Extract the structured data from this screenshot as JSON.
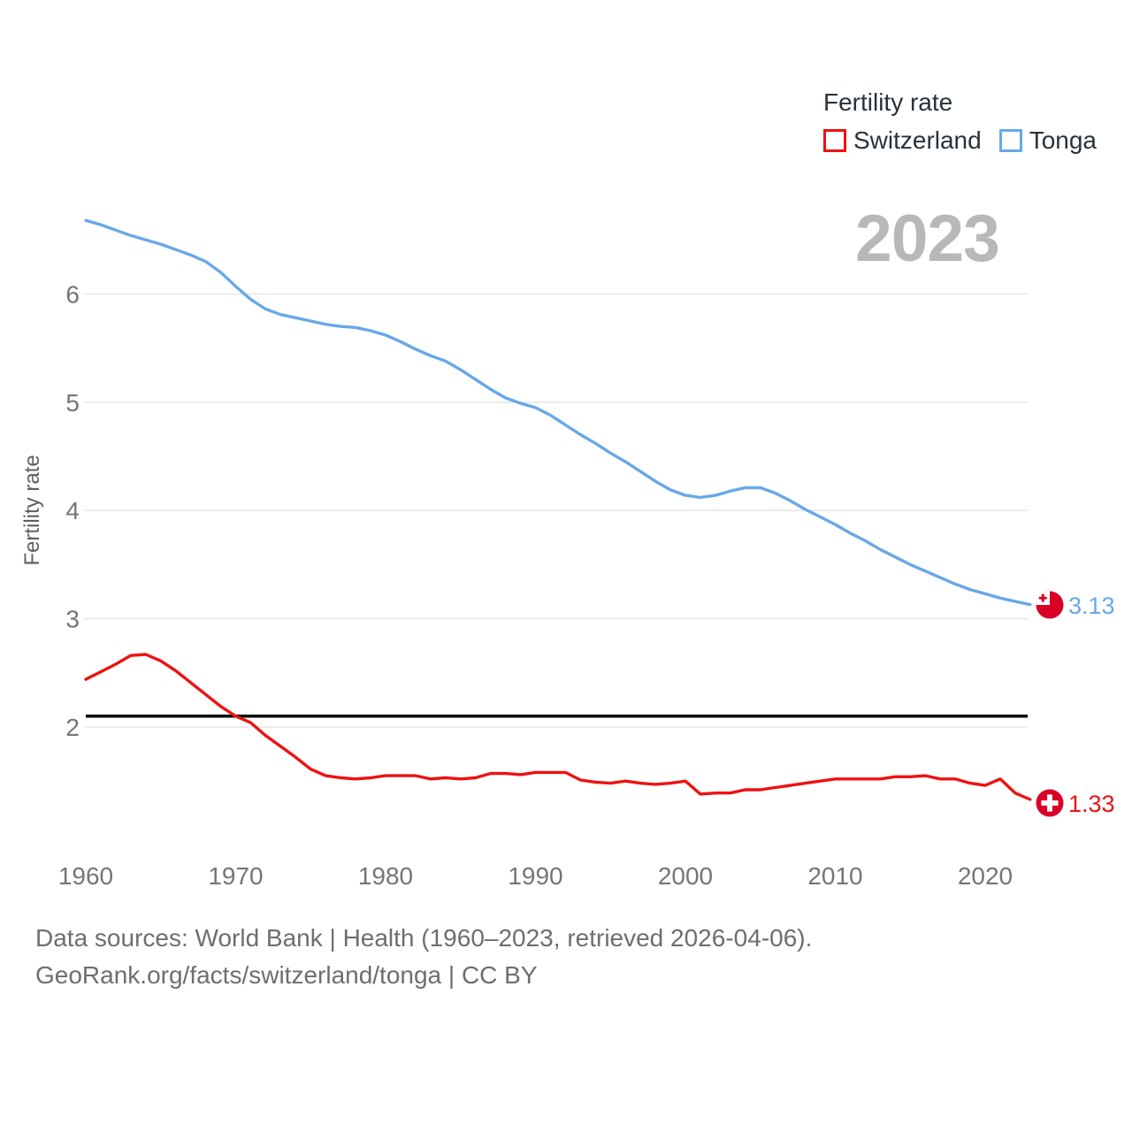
{
  "legend": {
    "title": "Fertility rate",
    "items": [
      {
        "label": "Switzerland",
        "color": "#ee1111"
      },
      {
        "label": "Tonga",
        "color": "#68a8e8"
      }
    ]
  },
  "year_badge": "2023",
  "footer": {
    "line1": "Data sources: World Bank | Health (1960–2023, retrieved 2026-04-06).",
    "line2": "GeoRank.org/facts/switzerland/tonga | CC BY"
  },
  "chart_data": {
    "type": "line",
    "title": "Fertility rate",
    "xlabel": "",
    "ylabel": "Fertility rate",
    "grid": "horizontal",
    "legend_position": "top-right",
    "xlim": [
      1960,
      2023
    ],
    "ylim": [
      1.25,
      6.8
    ],
    "x_ticks": [
      1960,
      1970,
      1980,
      1990,
      2000,
      2010,
      2020
    ],
    "y_ticks": [
      2,
      3,
      4,
      5,
      6
    ],
    "reference_line": 2.1,
    "x": [
      1960,
      1961,
      1962,
      1963,
      1964,
      1965,
      1966,
      1967,
      1968,
      1969,
      1970,
      1971,
      1972,
      1973,
      1974,
      1975,
      1976,
      1977,
      1978,
      1979,
      1980,
      1981,
      1982,
      1983,
      1984,
      1985,
      1986,
      1987,
      1988,
      1989,
      1990,
      1991,
      1992,
      1993,
      1994,
      1995,
      1996,
      1997,
      1998,
      1999,
      2000,
      2001,
      2002,
      2003,
      2004,
      2005,
      2006,
      2007,
      2008,
      2009,
      2010,
      2011,
      2012,
      2013,
      2014,
      2015,
      2016,
      2017,
      2018,
      2019,
      2020,
      2021,
      2022,
      2023
    ],
    "series": [
      {
        "name": "Switzerland",
        "color": "#ee1111",
        "values": [
          2.44,
          2.51,
          2.58,
          2.66,
          2.67,
          2.61,
          2.52,
          2.41,
          2.3,
          2.19,
          2.1,
          2.04,
          1.92,
          1.82,
          1.72,
          1.61,
          1.55,
          1.53,
          1.52,
          1.53,
          1.55,
          1.55,
          1.55,
          1.52,
          1.53,
          1.52,
          1.53,
          1.57,
          1.57,
          1.56,
          1.58,
          1.58,
          1.58,
          1.51,
          1.49,
          1.48,
          1.5,
          1.48,
          1.47,
          1.48,
          1.5,
          1.38,
          1.39,
          1.39,
          1.42,
          1.42,
          1.44,
          1.46,
          1.48,
          1.5,
          1.52,
          1.52,
          1.52,
          1.52,
          1.54,
          1.54,
          1.55,
          1.52,
          1.52,
          1.48,
          1.46,
          1.52,
          1.39,
          1.33
        ]
      },
      {
        "name": "Tonga",
        "color": "#68a8e8",
        "values": [
          6.68,
          6.64,
          6.59,
          6.54,
          6.5,
          6.46,
          6.41,
          6.36,
          6.3,
          6.2,
          6.07,
          5.95,
          5.86,
          5.81,
          5.78,
          5.75,
          5.72,
          5.7,
          5.69,
          5.66,
          5.62,
          5.56,
          5.49,
          5.43,
          5.38,
          5.3,
          5.21,
          5.12,
          5.04,
          4.99,
          4.95,
          4.88,
          4.79,
          4.7,
          4.62,
          4.53,
          4.45,
          4.36,
          4.27,
          4.19,
          4.14,
          4.12,
          4.14,
          4.18,
          4.21,
          4.21,
          4.16,
          4.09,
          4.01,
          3.94,
          3.87,
          3.79,
          3.72,
          3.64,
          3.57,
          3.5,
          3.44,
          3.38,
          3.32,
          3.27,
          3.23,
          3.19,
          3.16,
          3.13
        ]
      }
    ],
    "end_labels": [
      {
        "series": "Tonga",
        "value": "3.13",
        "color": "#68a8e8"
      },
      {
        "series": "Switzerland",
        "value": "1.33",
        "color": "#ee1111"
      }
    ],
    "flag_red": "#d80027"
  }
}
